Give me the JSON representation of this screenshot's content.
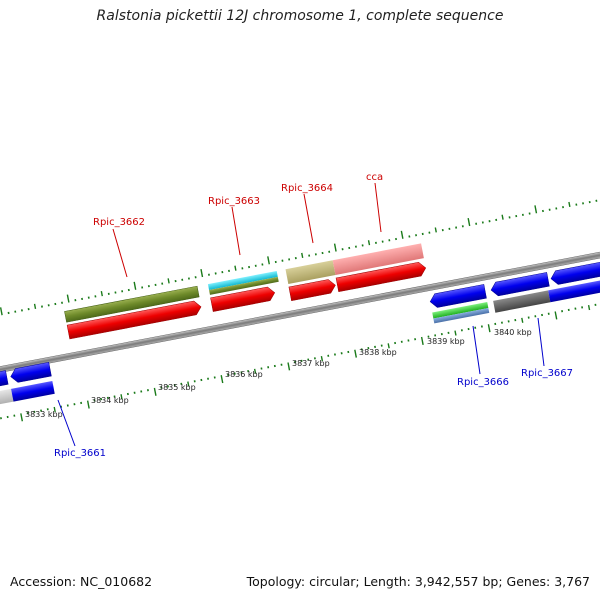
{
  "title": "Ralstonia pickettii 12J chromosome 1, complete sequence",
  "footer": {
    "accession": "Accession: NC_010682",
    "summary": "Topology: circular; Length: 3,942,557 bp; Genes: 3,767"
  },
  "scale_labels": [
    "3833 kbp",
    "3834 kbp",
    "3835 kbp",
    "3836 kbp",
    "3837 kbp",
    "3838 kbp",
    "3839 kbp",
    "3840 kbp"
  ],
  "gene_labels": {
    "forward": [
      "Rpic_3662",
      "Rpic_3663",
      "Rpic_3664",
      "cca"
    ],
    "reverse": [
      "Rpic_3661",
      "Rpic_3666",
      "Rpic_3667"
    ]
  },
  "colors": {
    "forward_label": "#cc0000",
    "reverse_label": "#0000cc",
    "tick": "#1a7a1a",
    "backbone": "#8a8a8a",
    "cds_forward": "#ee0000",
    "cds_reverse": "#0000ee"
  }
}
